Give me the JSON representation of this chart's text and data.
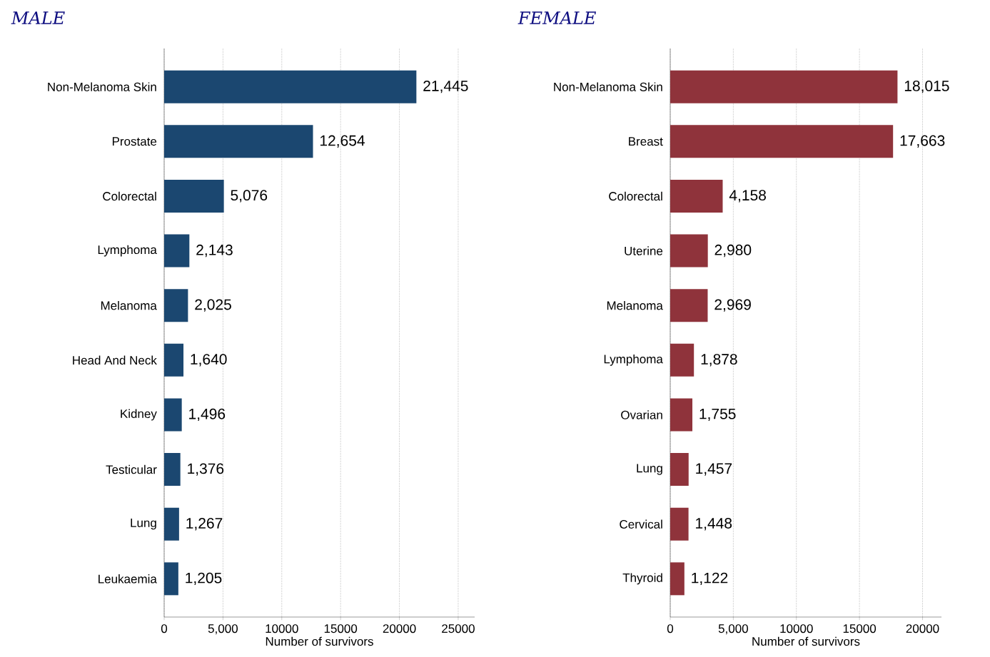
{
  "chart_data": [
    {
      "type": "bar",
      "orientation": "horizontal",
      "title": "MALE",
      "xlabel": "Number of survivors",
      "categories": [
        "Non-Melanoma Skin",
        "Prostate",
        "Colorectal",
        "Lymphoma",
        "Melanoma",
        "Head And Neck",
        "Kidney",
        "Testicular",
        "Lung",
        "Leukaemia"
      ],
      "values": [
        21445,
        12654,
        5076,
        2143,
        2025,
        1640,
        1496,
        1376,
        1267,
        1205
      ],
      "value_labels": [
        "21,445",
        "12,654",
        "5,076",
        "2,143",
        "2,025",
        "1,640",
        "1,496",
        "1,376",
        "1,267",
        "1,205"
      ],
      "color": "#1b4770",
      "xlim": [
        0,
        26400
      ],
      "xticks": [
        0,
        {
          "value": 5000,
          "label": "5,000"
        },
        10000,
        15000,
        20000,
        25000
      ],
      "grid": "x"
    },
    {
      "type": "bar",
      "orientation": "horizontal",
      "title": "FEMALE",
      "xlabel": "Number of survivors",
      "categories": [
        "Non-Melanoma Skin",
        "Breast",
        "Colorectal",
        "Uterine",
        "Melanoma",
        "Lymphoma",
        "Ovarian",
        "Lung",
        "Cervical",
        "Thyroid"
      ],
      "values": [
        18015,
        17663,
        4158,
        2980,
        2969,
        1878,
        1755,
        1457,
        1448,
        1122
      ],
      "value_labels": [
        "18,015",
        "17,663",
        "4,158",
        "2,980",
        "2,969",
        "1,878",
        "1,755",
        "1,457",
        "1,448",
        "1,122"
      ],
      "color": "#8f333b",
      "xlim": [
        0,
        21500
      ],
      "xticks": [
        0,
        {
          "value": 5000,
          "label": "5,000"
        },
        10000,
        15000,
        20000
      ],
      "grid": "x"
    }
  ]
}
